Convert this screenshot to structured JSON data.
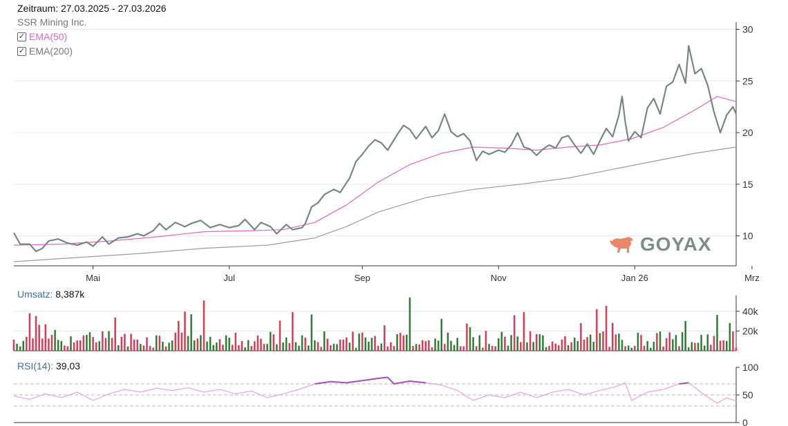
{
  "header": {
    "period_label": "Zeitraum: 27.03.2025 - 27.03.2026",
    "instrument": "SSR Mining Inc."
  },
  "legend": [
    {
      "label": "EMA(50)",
      "checked": true,
      "color": "#e066c4"
    },
    {
      "label": "EMA(200)",
      "checked": true,
      "color": "#888888"
    }
  ],
  "logo": {
    "text": "GOYAX",
    "icon": "bull-icon"
  },
  "colors": {
    "price": "#76877f",
    "ema50": "#e066c4",
    "ema200": "#9a9a9a",
    "vol_up": "#2e7d32",
    "vol_down": "#d93b55",
    "rsi": "#e8a0ec",
    "rsi_high": "#a64bc0",
    "grid": "#e8e8e8"
  },
  "volume": {
    "label": "Umsatz:",
    "value": "8,387k"
  },
  "rsi": {
    "label": "RSI(14):",
    "value": "39,03"
  },
  "chart_data": [
    {
      "type": "line",
      "panel": "price",
      "x_axis": {
        "labels": [
          "Mai",
          "Jul",
          "Sep",
          "Nov",
          "Jan 26",
          "Mrz"
        ]
      },
      "y_axis": {
        "ticks": [
          10,
          15,
          20,
          25,
          30
        ],
        "range": [
          7.1,
          30.3
        ],
        "side": "right"
      },
      "grid": true,
      "series": [
        {
          "name": "SSR Mining Inc.",
          "points": [
            [
              0,
              10.3
            ],
            [
              2,
              9.2
            ],
            [
              5,
              9.2
            ],
            [
              7,
              8.5
            ],
            [
              9,
              8.8
            ],
            [
              11,
              9.5
            ],
            [
              14,
              9.7
            ],
            [
              17,
              9.3
            ],
            [
              20,
              9.1
            ],
            [
              23,
              9.4
            ],
            [
              25,
              9.0
            ],
            [
              28,
              9.9
            ],
            [
              30,
              9.2
            ],
            [
              33,
              9.8
            ],
            [
              36,
              9.9
            ],
            [
              39,
              10.2
            ],
            [
              41,
              10.0
            ],
            [
              44,
              10.5
            ],
            [
              46,
              11.2
            ],
            [
              48,
              10.6
            ],
            [
              51,
              11.3
            ],
            [
              54,
              10.9
            ],
            [
              56,
              11.2
            ],
            [
              59,
              11.5
            ],
            [
              62,
              10.8
            ],
            [
              65,
              11.1
            ],
            [
              68,
              10.8
            ],
            [
              71,
              11.0
            ],
            [
              73,
              11.6
            ],
            [
              76,
              10.6
            ],
            [
              78,
              11.3
            ],
            [
              81,
              10.9
            ],
            [
              83,
              10.2
            ],
            [
              86,
              11.1
            ],
            [
              88,
              10.6
            ],
            [
              91,
              10.8
            ],
            [
              92,
              11.2
            ],
            [
              94,
              12.8
            ],
            [
              96,
              13.2
            ],
            [
              98,
              14.0
            ],
            [
              101,
              14.5
            ],
            [
              103,
              14.2
            ],
            [
              106,
              15.6
            ],
            [
              108,
              17.2
            ],
            [
              110,
              17.9
            ],
            [
              112,
              18.7
            ],
            [
              114,
              19.3
            ],
            [
              116,
              19.0
            ],
            [
              118,
              18.3
            ],
            [
              121,
              19.8
            ],
            [
              123,
              20.7
            ],
            [
              125,
              20.3
            ],
            [
              127,
              19.4
            ],
            [
              130,
              20.6
            ],
            [
              132,
              19.5
            ],
            [
              134,
              20.2
            ],
            [
              136,
              21.8
            ],
            [
              138,
              20.1
            ],
            [
              140,
              19.6
            ],
            [
              142,
              19.9
            ],
            [
              144,
              19.2
            ],
            [
              146,
              17.3
            ],
            [
              148,
              18.2
            ],
            [
              150,
              17.9
            ],
            [
              153,
              18.3
            ],
            [
              155,
              18.1
            ],
            [
              157,
              18.8
            ],
            [
              159,
              20.0
            ],
            [
              161,
              18.6
            ],
            [
              163,
              18.4
            ],
            [
              165,
              17.8
            ],
            [
              167,
              18.4
            ],
            [
              169,
              18.8
            ],
            [
              171,
              18.5
            ],
            [
              173,
              19.5
            ],
            [
              175,
              19.7
            ],
            [
              177,
              18.8
            ],
            [
              179,
              18.0
            ],
            [
              181,
              18.9
            ],
            [
              183,
              17.9
            ],
            [
              185,
              19.2
            ],
            [
              187,
              20.4
            ],
            [
              189,
              19.6
            ],
            [
              191,
              21.7
            ],
            [
              192,
              23.5
            ],
            [
              193,
              21.0
            ],
            [
              194,
              19.2
            ],
            [
              196,
              20.1
            ],
            [
              198,
              19.5
            ],
            [
              200,
              22.4
            ],
            [
              202,
              23.3
            ],
            [
              204,
              21.8
            ],
            [
              206,
              24.5
            ],
            [
              208,
              24.9
            ],
            [
              210,
              26.6
            ],
            [
              212,
              24.8
            ],
            [
              213,
              28.4
            ],
            [
              215,
              25.7
            ],
            [
              217,
              26.2
            ],
            [
              219,
              24.6
            ],
            [
              221,
              22.0
            ],
            [
              223,
              20.0
            ],
            [
              225,
              21.7
            ],
            [
              227,
              22.5
            ],
            [
              228,
              21.8
            ]
          ]
        },
        {
          "name": "EMA(50)",
          "points": [
            [
              0,
              9.1
            ],
            [
              15,
              9.2
            ],
            [
              30,
              9.5
            ],
            [
              45,
              9.9
            ],
            [
              60,
              10.4
            ],
            [
              75,
              10.5
            ],
            [
              85,
              10.6
            ],
            [
              95,
              11.3
            ],
            [
              105,
              13.0
            ],
            [
              115,
              15.2
            ],
            [
              125,
              16.9
            ],
            [
              135,
              18.0
            ],
            [
              145,
              18.6
            ],
            [
              155,
              18.5
            ],
            [
              165,
              18.3
            ],
            [
              175,
              18.6
            ],
            [
              185,
              18.8
            ],
            [
              195,
              19.4
            ],
            [
              205,
              20.5
            ],
            [
              215,
              22.2
            ],
            [
              222,
              23.5
            ],
            [
              228,
              23.0
            ]
          ]
        },
        {
          "name": "EMA(200)",
          "points": [
            [
              0,
              7.5
            ],
            [
              20,
              7.9
            ],
            [
              40,
              8.3
            ],
            [
              60,
              8.8
            ],
            [
              80,
              9.1
            ],
            [
              95,
              9.8
            ],
            [
              105,
              10.9
            ],
            [
              115,
              12.3
            ],
            [
              130,
              13.7
            ],
            [
              145,
              14.5
            ],
            [
              160,
              15.0
            ],
            [
              175,
              15.6
            ],
            [
              190,
              16.5
            ],
            [
              205,
              17.4
            ],
            [
              215,
              18.0
            ],
            [
              228,
              18.6
            ]
          ]
        }
      ]
    },
    {
      "type": "bar",
      "panel": "volume",
      "y_axis": {
        "ticks": [
          "20k",
          "40k"
        ],
        "tick_values": [
          20000,
          40000
        ],
        "range": [
          0,
          56000
        ],
        "side": "right"
      },
      "grid": true,
      "note_seed": 7
    },
    {
      "type": "line",
      "panel": "rsi",
      "y_axis": {
        "ticks": [
          0,
          50,
          100
        ],
        "range": [
          0,
          100
        ],
        "side": "right"
      },
      "reference_lines": [
        30,
        50,
        70
      ],
      "series": [
        {
          "name": "RSI(14)",
          "points": [
            [
              0,
              48
            ],
            [
              5,
              42
            ],
            [
              10,
              52
            ],
            [
              15,
              45
            ],
            [
              20,
              55
            ],
            [
              25,
              40
            ],
            [
              30,
              52
            ],
            [
              35,
              60
            ],
            [
              40,
              55
            ],
            [
              45,
              62
            ],
            [
              50,
              58
            ],
            [
              55,
              63
            ],
            [
              60,
              55
            ],
            [
              65,
              60
            ],
            [
              70,
              52
            ],
            [
              75,
              57
            ],
            [
              80,
              45
            ],
            [
              85,
              52
            ],
            [
              90,
              60
            ],
            [
              95,
              70
            ],
            [
              100,
              74
            ],
            [
              105,
              72
            ],
            [
              110,
              76
            ],
            [
              115,
              80
            ],
            [
              118,
              82
            ],
            [
              120,
              70
            ],
            [
              125,
              75
            ],
            [
              130,
              72
            ],
            [
              135,
              68
            ],
            [
              140,
              58
            ],
            [
              145,
              40
            ],
            [
              150,
              50
            ],
            [
              155,
              45
            ],
            [
              160,
              55
            ],
            [
              165,
              45
            ],
            [
              170,
              55
            ],
            [
              175,
              60
            ],
            [
              180,
              50
            ],
            [
              185,
              58
            ],
            [
              190,
              65
            ],
            [
              193,
              72
            ],
            [
              195,
              40
            ],
            [
              200,
              55
            ],
            [
              205,
              60
            ],
            [
              210,
              70
            ],
            [
              213,
              72
            ],
            [
              218,
              50
            ],
            [
              222,
              35
            ],
            [
              225,
              45
            ],
            [
              228,
              39
            ]
          ]
        }
      ]
    }
  ]
}
